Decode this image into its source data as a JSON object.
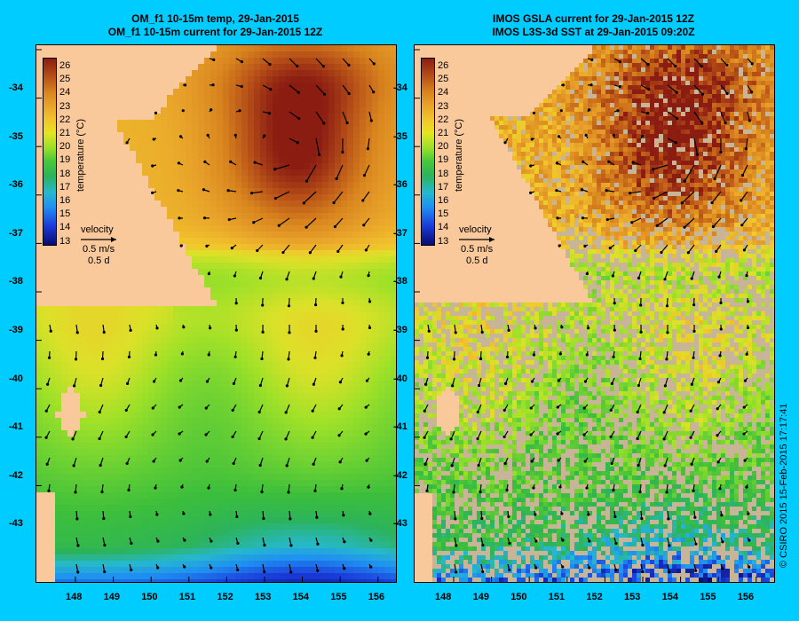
{
  "left_panel": {
    "title_line1": "OM_f1 10-15m temp, 29-Jan-2015",
    "title_line2": "OM_f1 10-15m current for 29-Jan-2015 12Z"
  },
  "right_panel": {
    "title_line1": "IMOS GSLA current for 29-Jan-2015 12Z",
    "title_line2": "IMOS L3S-3d SST at 29-Jan-2015 09:20Z"
  },
  "colorbar": {
    "title": "temperature (°C)",
    "ticks": [
      "26",
      "25",
      "24",
      "23",
      "22",
      "21",
      "20",
      "19",
      "18",
      "17",
      "16",
      "15",
      "14",
      "13"
    ]
  },
  "velocity_legend": {
    "label": "velocity",
    "speed": "0.5 m/s",
    "duration": "0.5 d"
  },
  "axes": {
    "y_ticks": [
      "-34",
      "-35",
      "-36",
      "-37",
      "-38",
      "-39",
      "-40",
      "-41",
      "-42",
      "-43"
    ],
    "x_ticks": [
      "148",
      "149",
      "150",
      "151",
      "152",
      "153",
      "154",
      "155",
      "156"
    ]
  },
  "colors": {
    "background": "#00ccff",
    "land": "#f9c89b",
    "no_data": "#c8b496"
  },
  "copyright": "© CSIRO 2015   15-Feb-2015 17:17:41"
}
